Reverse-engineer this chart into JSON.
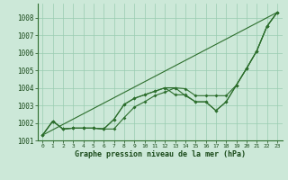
{
  "background_color": "#cce8d8",
  "grid_color": "#99ccb0",
  "line_color": "#2d6e2d",
  "xlim": [
    -0.5,
    23.5
  ],
  "ylim": [
    1001.0,
    1008.8
  ],
  "yticks": [
    1001,
    1002,
    1003,
    1004,
    1005,
    1006,
    1007,
    1008
  ],
  "xticks": [
    0,
    1,
    2,
    3,
    4,
    5,
    6,
    7,
    8,
    9,
    10,
    11,
    12,
    13,
    14,
    15,
    16,
    17,
    18,
    19,
    20,
    21,
    22,
    23
  ],
  "xlabel": "Graphe pression niveau de la mer (hPa)",
  "trend_x": [
    0,
    23
  ],
  "trend_y": [
    1001.3,
    1008.3
  ],
  "line1": [
    1001.3,
    1002.1,
    1001.65,
    1001.7,
    1001.7,
    1001.7,
    1001.65,
    1001.65,
    1002.3,
    1002.9,
    1003.2,
    1003.55,
    1003.75,
    1004.0,
    1003.95,
    1003.55,
    1003.55,
    1003.55,
    1003.55,
    1004.15,
    1005.1,
    1006.1,
    1007.5,
    1008.3
  ],
  "line2": [
    1001.3,
    1002.1,
    1001.65,
    1001.7,
    1001.7,
    1001.7,
    1001.65,
    1002.2,
    1003.05,
    1003.4,
    1003.6,
    1003.8,
    1004.0,
    1004.0,
    1003.55,
    1003.2,
    1003.2,
    1002.7,
    1003.2,
    1004.15,
    1005.1,
    1006.1,
    1007.5,
    1008.3
  ],
  "line3": [
    1001.3,
    1002.1,
    1001.65,
    1001.7,
    1001.7,
    1001.7,
    1001.65,
    1002.2,
    1003.05,
    1003.4,
    1003.6,
    1003.8,
    1004.0,
    1003.6,
    1003.6,
    1003.2,
    1003.2,
    1002.7,
    1003.2,
    1004.15,
    1005.1,
    1006.1,
    1007.5,
    1008.3
  ]
}
